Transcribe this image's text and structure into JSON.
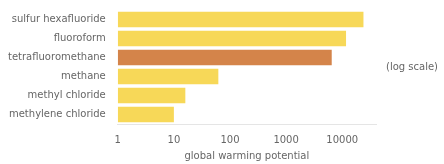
{
  "chart_data": {
    "type": "bar",
    "orientation": "horizontal",
    "categories": [
      "sulfur hexafluoride",
      "fluoroform",
      "tetrafluoromethane",
      "methane",
      "methyl chloride",
      "methylene chloride"
    ],
    "values": [
      23900,
      11700,
      6500,
      62,
      16,
      10
    ],
    "colors": [
      "#f7d858",
      "#f7d858",
      "#d4844a",
      "#f7d858",
      "#f7d858",
      "#f7d858"
    ],
    "xlabel": "global warming potential",
    "log": "x",
    "xlim": [
      1,
      40000
    ],
    "xticks": [
      1,
      10,
      100,
      1000,
      10000
    ],
    "annotation": "(log scale)",
    "grid": false
  }
}
